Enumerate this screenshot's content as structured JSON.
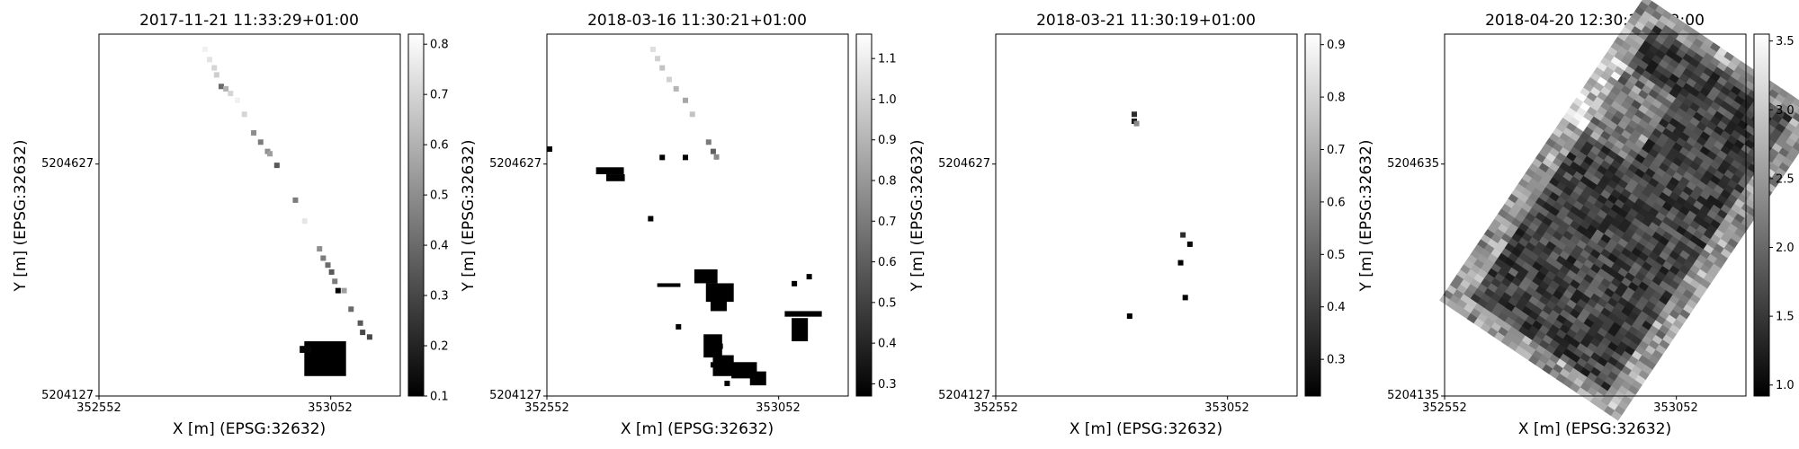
{
  "chart_data": [
    {
      "type": "heatmap",
      "title": "2017-11-21 11:33:29+01:00",
      "xlabel": "X [m] (EPSG:32632)",
      "ylabel": "Y [m] (EPSG:32632)",
      "x_ticks": [
        352552,
        353052
      ],
      "y_ticks": [
        5204127,
        5204627
      ],
      "xlim": [
        352552,
        353202
      ],
      "ylim": [
        5204127,
        5204907
      ],
      "colorbar": {
        "min": 0.1,
        "max": 0.82,
        "ticks": [
          "0.1",
          "0.2",
          "0.3",
          "0.4",
          "0.5",
          "0.6",
          "0.7",
          "0.8"
        ]
      },
      "grid": false,
      "cmap": "gray",
      "pixels": [
        [
          352775,
          5204880,
          0.78
        ],
        [
          352785,
          5204858,
          0.74
        ],
        [
          352795,
          5204840,
          0.7
        ],
        [
          352800,
          5204825,
          0.68
        ],
        [
          352810,
          5204800,
          0.4
        ],
        [
          352820,
          5204795,
          0.6
        ],
        [
          352830,
          5204785,
          0.7
        ],
        [
          352845,
          5204770,
          0.78
        ],
        [
          352860,
          5204740,
          0.7
        ],
        [
          352880,
          5204700,
          0.5
        ],
        [
          352895,
          5204680,
          0.45
        ],
        [
          352910,
          5204660,
          0.5
        ],
        [
          352915,
          5204655,
          0.55
        ],
        [
          352930,
          5204630,
          0.35
        ],
        [
          352970,
          5204555,
          0.45
        ],
        [
          352990,
          5204510,
          0.75
        ],
        [
          353022,
          5204450,
          0.5
        ],
        [
          353030,
          5204430,
          0.45
        ],
        [
          353040,
          5204415,
          0.4
        ],
        [
          353048,
          5204400,
          0.35
        ],
        [
          353055,
          5204380,
          0.45
        ],
        [
          353062,
          5204360,
          0.1
        ],
        [
          353075,
          5204360,
          0.55
        ],
        [
          353090,
          5204320,
          0.4
        ],
        [
          353110,
          5204290,
          0.35
        ],
        [
          353115,
          5204270,
          0.3
        ],
        [
          353130,
          5204260,
          0.3
        ]
      ],
      "blobs": [
        {
          "cells": [
            [
              352995,
              5204245,
              90,
              75
            ]
          ],
          "value": 0.1
        },
        {
          "cells": [
            [
              352985,
              5204235,
              25,
              15
            ]
          ],
          "value": 0.12
        }
      ]
    },
    {
      "type": "heatmap",
      "title": "2018-03-16 11:30:21+01:00",
      "xlabel": "X [m] (EPSG:32632)",
      "ylabel": "Y [m] (EPSG:32632)",
      "x_ticks": [
        352552,
        353052
      ],
      "y_ticks": [
        5204127,
        5204627
      ],
      "xlim": [
        352552,
        353202
      ],
      "ylim": [
        5204127,
        5204907
      ],
      "colorbar": {
        "min": 0.27,
        "max": 1.16,
        "ticks": [
          "0.3",
          "0.4",
          "0.5",
          "0.6",
          "0.7",
          "0.8",
          "0.9",
          "1.0",
          "1.1"
        ]
      },
      "grid": false,
      "cmap": "gray",
      "pixels": [
        [
          352775,
          5204880,
          1.05
        ],
        [
          352785,
          5204860,
          1.0
        ],
        [
          352795,
          5204840,
          0.95
        ],
        [
          352810,
          5204815,
          1.0
        ],
        [
          352825,
          5204795,
          0.9
        ],
        [
          352845,
          5204770,
          0.85
        ],
        [
          352860,
          5204740,
          0.95
        ],
        [
          352895,
          5204680,
          0.7
        ],
        [
          352905,
          5204660,
          0.6
        ],
        [
          352912,
          5204648,
          0.75
        ],
        [
          352552,
          5204665,
          0.27
        ],
        [
          352795,
          5204647,
          0.27
        ],
        [
          352845,
          5204647,
          0.27
        ],
        [
          352770,
          5204515,
          0.27
        ],
        [
          352830,
          5204282,
          0.27
        ],
        [
          352920,
          5204240,
          0.27
        ],
        [
          352905,
          5204200,
          0.27
        ],
        [
          352935,
          5204160,
          0.27
        ],
        [
          352970,
          5204180,
          0.27
        ],
        [
          353080,
          5204375,
          0.27
        ],
        [
          353112,
          5204390,
          0.27
        ]
      ],
      "blobs": [
        {
          "cells": [
            [
              352658,
              5204620,
              60,
              15
            ],
            [
              352680,
              5204605,
              40,
              15
            ]
          ],
          "value": 0.27
        },
        {
          "cells": [
            [
              352870,
              5204400,
              50,
              30
            ],
            [
              352895,
              5204370,
              60,
              40
            ],
            [
              352905,
              5204335,
              35,
              25
            ]
          ],
          "value": 0.27
        },
        {
          "cells": [
            [
              352790,
              5204370,
              50,
              8
            ]
          ],
          "value": 0.27
        },
        {
          "cells": [
            [
              352890,
              5204260,
              40,
              50
            ],
            [
              352910,
              5204215,
              45,
              45
            ],
            [
              352950,
              5204200,
              55,
              35
            ],
            [
              352990,
              5204180,
              35,
              30
            ]
          ],
          "value": 0.27
        },
        {
          "cells": [
            [
              353065,
              5204310,
              80,
              12
            ],
            [
              353080,
              5204295,
              35,
              50
            ]
          ],
          "value": 0.27
        }
      ]
    },
    {
      "type": "heatmap",
      "title": "2018-03-21 11:30:19+01:00",
      "xlabel": "X [m] (EPSG:32632)",
      "ylabel": "Y [m] (EPSG:32632)",
      "x_ticks": [
        352552,
        353052
      ],
      "y_ticks": [
        5204127,
        5204627
      ],
      "xlim": [
        352552,
        353202
      ],
      "ylim": [
        5204127,
        5204907
      ],
      "colorbar": {
        "min": 0.23,
        "max": 0.92,
        "ticks": [
          "0.3",
          "0.4",
          "0.5",
          "0.6",
          "0.7",
          "0.8",
          "0.9"
        ]
      },
      "grid": false,
      "cmap": "gray",
      "pixels": [
        [
          352845,
          5204725,
          0.3
        ],
        [
          352850,
          5204720,
          0.6
        ],
        [
          352845,
          5204740,
          0.35
        ],
        [
          352950,
          5204480,
          0.35
        ],
        [
          352965,
          5204460,
          0.25
        ],
        [
          352955,
          5204345,
          0.23
        ],
        [
          352835,
          5204305,
          0.23
        ],
        [
          352945,
          5204420,
          0.23
        ]
      ],
      "blobs": []
    },
    {
      "type": "heatmap",
      "title": "2018-04-20 12:30:19+02:00",
      "xlabel": "X [m] (EPSG:32632)",
      "ylabel": "Y [m] (EPSG:32632)",
      "x_ticks": [
        352552,
        353052
      ],
      "y_ticks": [
        5204135,
        5204635
      ],
      "xlim": [
        352552,
        353202
      ],
      "ylim": [
        5204135,
        5204915
      ],
      "colorbar": {
        "min": 0.92,
        "max": 3.55,
        "ticks": [
          "1.0",
          "1.5",
          "2.0",
          "2.5",
          "3.0",
          "3.5"
        ]
      },
      "grid": false,
      "cmap": "gray",
      "value_range": [
        0.92,
        3.55
      ]
    }
  ]
}
